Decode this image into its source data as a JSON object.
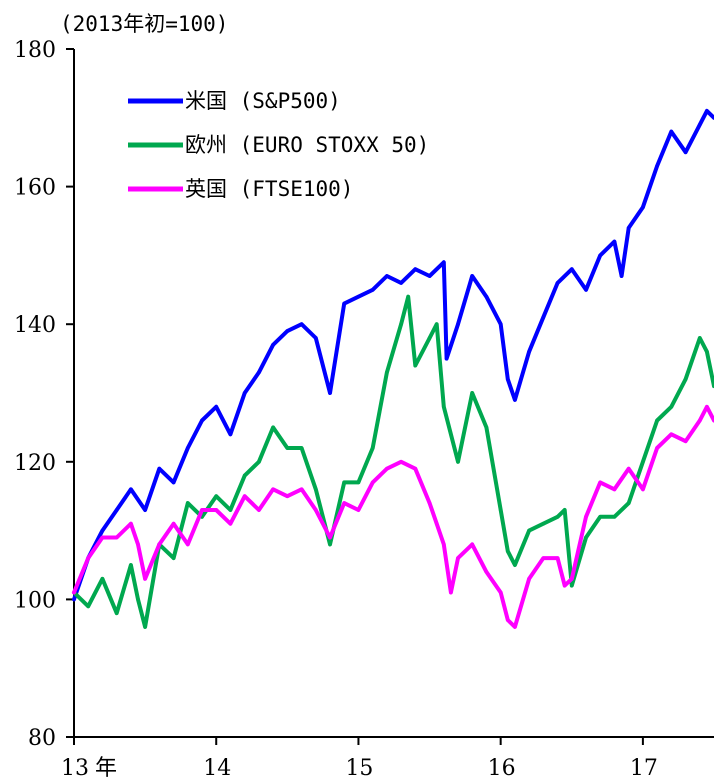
{
  "chart_data": {
    "type": "line",
    "title": "",
    "unit_note": "(2013年初=100)",
    "xlabel": "",
    "ylabel": "",
    "xlim": [
      2013.0,
      2017.5
    ],
    "ylim": [
      80,
      180
    ],
    "y_ticks": [
      80,
      100,
      120,
      140,
      160,
      180
    ],
    "x_ticks": [
      {
        "value": 2013,
        "label": "13",
        "suffix": "年"
      },
      {
        "value": 2014,
        "label": "14",
        "suffix": ""
      },
      {
        "value": 2015,
        "label": "15",
        "suffix": ""
      },
      {
        "value": 2016,
        "label": "16",
        "suffix": ""
      },
      {
        "value": 2017,
        "label": "17",
        "suffix": ""
      }
    ],
    "grid": false,
    "legend_position": "top-left",
    "series": [
      {
        "name": "米国 (S&P500)",
        "color": "#0000ff",
        "x": [
          2013.0,
          2013.1,
          2013.2,
          2013.3,
          2013.4,
          2013.5,
          2013.6,
          2013.7,
          2013.8,
          2013.9,
          2014.0,
          2014.1,
          2014.2,
          2014.3,
          2014.4,
          2014.5,
          2014.6,
          2014.7,
          2014.8,
          2014.9,
          2015.0,
          2015.1,
          2015.2,
          2015.3,
          2015.4,
          2015.5,
          2015.6,
          2015.62,
          2015.7,
          2015.8,
          2015.9,
          2016.0,
          2016.05,
          2016.1,
          2016.2,
          2016.3,
          2016.4,
          2016.5,
          2016.6,
          2016.7,
          2016.8,
          2016.85,
          2016.9,
          2017.0,
          2017.1,
          2017.2,
          2017.3,
          2017.4,
          2017.45,
          2017.5
        ],
        "y": [
          100,
          106,
          110,
          113,
          116,
          113,
          119,
          117,
          122,
          126,
          128,
          124,
          130,
          133,
          137,
          139,
          140,
          138,
          130,
          143,
          144,
          145,
          147,
          146,
          148,
          147,
          149,
          135,
          140,
          147,
          144,
          140,
          132,
          129,
          136,
          141,
          146,
          148,
          145,
          150,
          152,
          147,
          154,
          157,
          163,
          168,
          165,
          169,
          171,
          170
        ]
      },
      {
        "name": "欧州 (EURO STOXX 50)",
        "color": "#00a84f",
        "x": [
          2013.0,
          2013.1,
          2013.2,
          2013.3,
          2013.4,
          2013.45,
          2013.5,
          2013.6,
          2013.7,
          2013.8,
          2013.9,
          2014.0,
          2014.1,
          2014.2,
          2014.3,
          2014.4,
          2014.5,
          2014.6,
          2014.7,
          2014.8,
          2014.9,
          2015.0,
          2015.1,
          2015.2,
          2015.3,
          2015.35,
          2015.4,
          2015.5,
          2015.55,
          2015.6,
          2015.7,
          2015.8,
          2015.9,
          2016.0,
          2016.05,
          2016.1,
          2016.2,
          2016.3,
          2016.4,
          2016.45,
          2016.5,
          2016.6,
          2016.7,
          2016.8,
          2016.9,
          2017.0,
          2017.1,
          2017.2,
          2017.3,
          2017.4,
          2017.45,
          2017.5
        ],
        "y": [
          101,
          99,
          103,
          98,
          105,
          100,
          96,
          108,
          106,
          114,
          112,
          115,
          113,
          118,
          120,
          125,
          122,
          122,
          116,
          108,
          117,
          117,
          122,
          133,
          140,
          144,
          134,
          138,
          140,
          128,
          120,
          130,
          125,
          113,
          107,
          105,
          110,
          111,
          112,
          113,
          102,
          109,
          112,
          112,
          114,
          120,
          126,
          128,
          132,
          138,
          136,
          131
        ]
      },
      {
        "name": "英国 (FTSE100)",
        "color": "#ff00ff",
        "x": [
          2013.0,
          2013.1,
          2013.2,
          2013.3,
          2013.4,
          2013.45,
          2013.5,
          2013.6,
          2013.7,
          2013.8,
          2013.9,
          2014.0,
          2014.1,
          2014.2,
          2014.3,
          2014.4,
          2014.5,
          2014.6,
          2014.7,
          2014.8,
          2014.9,
          2015.0,
          2015.1,
          2015.2,
          2015.3,
          2015.4,
          2015.5,
          2015.55,
          2015.6,
          2015.65,
          2015.7,
          2015.8,
          2015.9,
          2016.0,
          2016.05,
          2016.1,
          2016.2,
          2016.3,
          2016.4,
          2016.45,
          2016.5,
          2016.6,
          2016.7,
          2016.8,
          2016.9,
          2017.0,
          2017.1,
          2017.2,
          2017.3,
          2017.4,
          2017.45,
          2017.5
        ],
        "y": [
          101,
          106,
          109,
          109,
          111,
          108,
          103,
          108,
          111,
          108,
          113,
          113,
          111,
          115,
          113,
          116,
          115,
          116,
          113,
          109,
          114,
          113,
          117,
          119,
          120,
          119,
          114,
          111,
          108,
          101,
          106,
          108,
          104,
          101,
          97,
          96,
          103,
          106,
          106,
          102,
          103,
          112,
          117,
          116,
          119,
          116,
          122,
          124,
          123,
          126,
          128,
          126
        ]
      }
    ]
  }
}
